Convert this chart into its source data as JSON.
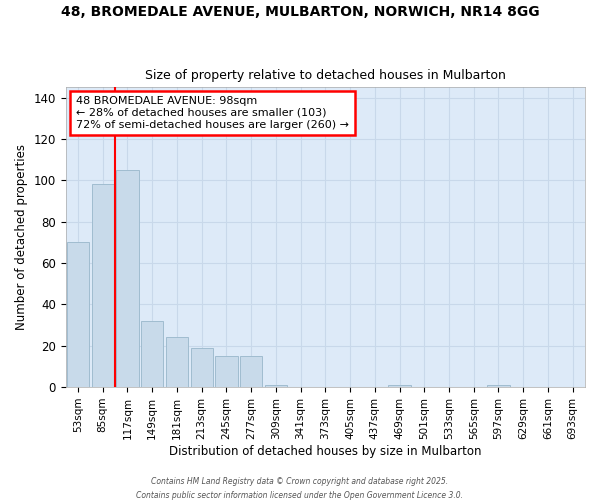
{
  "title1": "48, BROMEDALE AVENUE, MULBARTON, NORWICH, NR14 8GG",
  "title2": "Size of property relative to detached houses in Mulbarton",
  "xlabel": "Distribution of detached houses by size in Mulbarton",
  "ylabel": "Number of detached properties",
  "categories": [
    "53sqm",
    "85sqm",
    "117sqm",
    "149sqm",
    "181sqm",
    "213sqm",
    "245sqm",
    "277sqm",
    "309sqm",
    "341sqm",
    "373sqm",
    "405sqm",
    "437sqm",
    "469sqm",
    "501sqm",
    "533sqm",
    "565sqm",
    "597sqm",
    "629sqm",
    "661sqm",
    "693sqm"
  ],
  "values": [
    70,
    98,
    105,
    32,
    24,
    19,
    15,
    15,
    1,
    0,
    0,
    0,
    0,
    1,
    0,
    0,
    0,
    1,
    0,
    0,
    0
  ],
  "bar_color": "#c8daea",
  "bar_edge_color": "#a0bcd0",
  "grid_color": "#c8d8ea",
  "plot_bg_color": "#ddeaf8",
  "fig_bg_color": "#ffffff",
  "red_line_x": 1.5,
  "annotation_title": "48 BROMEDALE AVENUE: 98sqm",
  "annotation_line1": "← 28% of detached houses are smaller (103)",
  "annotation_line2": "72% of semi-detached houses are larger (260) →",
  "ylim": [
    0,
    145
  ],
  "yticks": [
    0,
    20,
    40,
    60,
    80,
    100,
    120,
    140
  ],
  "footer1": "Contains HM Land Registry data © Crown copyright and database right 2025.",
  "footer2": "Contains public sector information licensed under the Open Government Licence 3.0."
}
